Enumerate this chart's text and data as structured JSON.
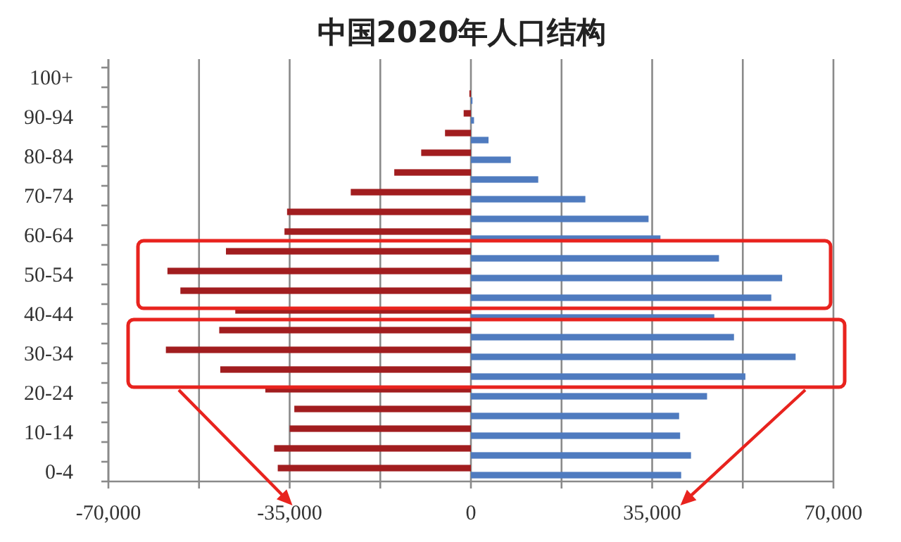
{
  "chart_data": {
    "type": "bar",
    "orientation": "horizontal",
    "title": "中国2020年人口结构",
    "categories": [
      "100+",
      null,
      "90-94",
      null,
      "80-84",
      null,
      "70-74",
      null,
      "60-64",
      null,
      "50-54",
      null,
      "40-44",
      null,
      "30-34",
      null,
      "20-24",
      null,
      "10-14",
      null,
      "0-4"
    ],
    "series": [
      {
        "color": "#a11d1f",
        "values": [
          0,
          -300,
          -1400,
          -5000,
          -9600,
          -14800,
          -23200,
          -35500,
          -36000,
          -47300,
          -58600,
          -56100,
          -45500,
          -48600,
          -58900,
          -48400,
          -39700,
          -34100,
          -35000,
          -38000,
          -37300
        ]
      },
      {
        "color": "#4f7bbf",
        "values": [
          0,
          300,
          600,
          3400,
          7700,
          13000,
          22100,
          34300,
          36600,
          47900,
          60100,
          58000,
          47000,
          50800,
          62700,
          53000,
          45600,
          40200,
          40400,
          42500,
          40600
        ]
      }
    ],
    "xlim": [
      -70000,
      70000
    ],
    "xticks": [
      {
        "value": -70000,
        "label": "-70,000"
      },
      {
        "value": -52500,
        "label": null
      },
      {
        "value": -35000,
        "label": "-35,000"
      },
      {
        "value": -17500,
        "label": null
      },
      0,
      {
        "value": 17500,
        "label": null
      },
      {
        "value": 35000,
        "label": "35,000"
      },
      {
        "value": 52500,
        "label": null
      },
      {
        "value": 70000,
        "label": "70,000"
      }
    ],
    "grid": "x"
  }
}
